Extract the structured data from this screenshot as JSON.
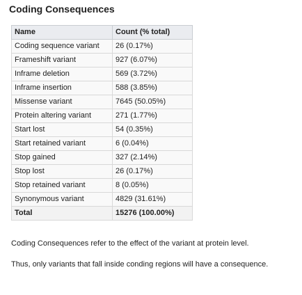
{
  "title": "Coding Consequences",
  "table": {
    "headers": [
      "Name",
      "Count (% total)"
    ],
    "rows": [
      {
        "name": "Coding sequence variant",
        "count": "26 (0.17%)"
      },
      {
        "name": "Frameshift variant",
        "count": "927 (6.07%)"
      },
      {
        "name": "Inframe deletion",
        "count": "569 (3.72%)"
      },
      {
        "name": "Inframe insertion",
        "count": "588 (3.85%)"
      },
      {
        "name": "Missense variant",
        "count": "7645 (50.05%)"
      },
      {
        "name": "Protein altering variant",
        "count": "271 (1.77%)"
      },
      {
        "name": "Start lost",
        "count": "54 (0.35%)"
      },
      {
        "name": "Start retained variant",
        "count": "6 (0.04%)"
      },
      {
        "name": "Stop gained",
        "count": "327 (2.14%)"
      },
      {
        "name": "Stop lost",
        "count": "26 (0.17%)"
      },
      {
        "name": "Stop retained variant",
        "count": "8 (0.05%)"
      },
      {
        "name": "Synonymous variant",
        "count": "4829 (31.61%)"
      }
    ],
    "total": {
      "name": "Total",
      "count": "15276 (100.00%)"
    }
  },
  "notes": [
    "Coding Consequences refer to the effect of the variant at protein level.",
    "Thus, only variants that fall inside conding regions will have a consequence."
  ]
}
